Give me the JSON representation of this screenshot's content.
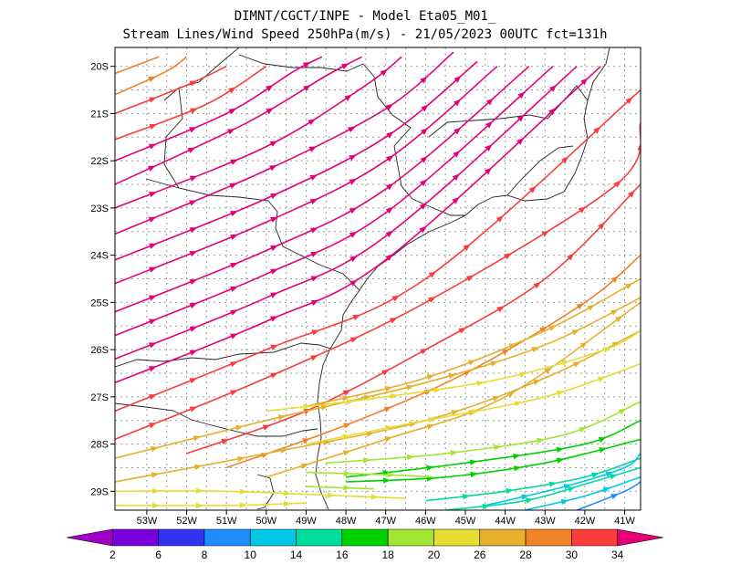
{
  "chart_data": {
    "type": "streamline",
    "title_line1": "DIMNT/CGCT/INPE -  Model Eta05_M01_",
    "title_line2": "Stream Lines/Wind Speed 250hPa(m/s) -  21/05/2023 00UTC fct=131h",
    "x_axis": {
      "range": [
        -53.8,
        -40.6
      ],
      "ticks": [
        -53,
        -52,
        -51,
        -50,
        -49,
        -48,
        -47,
        -46,
        -45,
        -44,
        -43,
        -42,
        -41
      ],
      "tick_labels": [
        "53W",
        "52W",
        "51W",
        "50W",
        "49W",
        "48W",
        "47W",
        "46W",
        "45W",
        "44W",
        "43W",
        "42W",
        "41W"
      ]
    },
    "y_axis": {
      "range": [
        -29.4,
        -19.6
      ],
      "ticks": [
        -20,
        -21,
        -22,
        -23,
        -24,
        -25,
        -26,
        -27,
        -28,
        -29
      ],
      "tick_labels": [
        "20S",
        "21S",
        "22S",
        "23S",
        "24S",
        "25S",
        "26S",
        "27S",
        "28S",
        "29S"
      ]
    },
    "grid": true,
    "colorbar": {
      "labels": [
        "2",
        "6",
        "8",
        "10",
        "14",
        "16",
        "18",
        "20",
        "26",
        "28",
        "30",
        "34"
      ],
      "colors": [
        "#a000c8",
        "#7800dc",
        "#3232f0",
        "#1e8cff",
        "#00c8e6",
        "#00dc9c",
        "#00d200",
        "#a0e632",
        "#e6dc32",
        "#e6af2d",
        "#f08228",
        "#fa3c3c",
        "#e60078"
      ]
    },
    "streamlines": [
      {
        "speed": 34,
        "points": [
          [
            -53.8,
            -23.55
          ],
          [
            -50,
            -22.2
          ],
          [
            -47,
            -20.9
          ],
          [
            -45.3,
            -19.7
          ]
        ]
      },
      {
        "speed": 34,
        "points": [
          [
            -53.8,
            -24.1
          ],
          [
            -50,
            -22.8
          ],
          [
            -47,
            -21.5
          ],
          [
            -44.7,
            -19.9
          ]
        ]
      },
      {
        "speed": 34,
        "points": [
          [
            -53.8,
            -24.6
          ],
          [
            -50,
            -23.3
          ],
          [
            -47,
            -22
          ],
          [
            -44.2,
            -20
          ]
        ]
      },
      {
        "speed": 34,
        "points": [
          [
            -53.8,
            -25.2
          ],
          [
            -50,
            -23.9
          ],
          [
            -47,
            -22.6
          ],
          [
            -43.4,
            -20
          ]
        ]
      },
      {
        "speed": 34,
        "points": [
          [
            -53.8,
            -25.7
          ],
          [
            -50,
            -24.4
          ],
          [
            -47,
            -23.1
          ],
          [
            -42.8,
            -20
          ]
        ]
      },
      {
        "speed": 34,
        "points": [
          [
            -53.8,
            -26.2
          ],
          [
            -50,
            -24.9
          ],
          [
            -47,
            -23.6
          ],
          [
            -42.2,
            -20
          ]
        ]
      },
      {
        "speed": 34,
        "points": [
          [
            -53.8,
            -26.7
          ],
          [
            -50,
            -25.4
          ],
          [
            -47,
            -24.1
          ],
          [
            -41.6,
            -20
          ]
        ]
      },
      {
        "speed": 34,
        "points": [
          [
            -53.8,
            -23
          ],
          [
            -50,
            -21.7
          ],
          [
            -47.5,
            -20.4
          ],
          [
            -46.6,
            -19.8
          ]
        ]
      },
      {
        "speed": 34,
        "points": [
          [
            -53.8,
            -22.5
          ],
          [
            -50.5,
            -21.2
          ],
          [
            -48.5,
            -20.2
          ],
          [
            -47.6,
            -19.8
          ]
        ]
      },
      {
        "speed": 34,
        "points": [
          [
            -53.8,
            -22
          ],
          [
            -51,
            -21
          ],
          [
            -49.3,
            -20.1
          ],
          [
            -48.6,
            -19.8
          ]
        ]
      },
      {
        "speed": 30,
        "points": [
          [
            -53.8,
            -21.55
          ],
          [
            -51.5,
            -20.8
          ],
          [
            -50,
            -20
          ]
        ]
      },
      {
        "speed": 30,
        "points": [
          [
            -53.8,
            -21
          ],
          [
            -52,
            -20.4
          ],
          [
            -51,
            -20
          ]
        ]
      },
      {
        "speed": 28,
        "points": [
          [
            -53.8,
            -20.6
          ],
          [
            -52.5,
            -20.1
          ],
          [
            -52,
            -19.8
          ]
        ]
      },
      {
        "speed": 28,
        "points": [
          [
            -53.8,
            -20.15
          ],
          [
            -52.7,
            -19.8
          ]
        ]
      },
      {
        "speed": 30,
        "points": [
          [
            -53.8,
            -27.3
          ],
          [
            -50,
            -26
          ],
          [
            -46,
            -24.5
          ],
          [
            -40.6,
            -20.5
          ]
        ]
      },
      {
        "speed": 30,
        "points": [
          [
            -53.8,
            -27.9
          ],
          [
            -50,
            -26.6
          ],
          [
            -46,
            -25
          ],
          [
            -41.2,
            -22.5
          ],
          [
            -40.6,
            -21.2
          ]
        ]
      },
      {
        "speed": 30,
        "points": [
          [
            -52,
            -28.2
          ],
          [
            -49,
            -27.3
          ],
          [
            -46,
            -26
          ],
          [
            -43,
            -24.5
          ],
          [
            -40.6,
            -22.5
          ]
        ]
      },
      {
        "speed": 28,
        "points": [
          [
            -51,
            -28.5
          ],
          [
            -48,
            -27.6
          ],
          [
            -45,
            -26.5
          ],
          [
            -42,
            -25
          ],
          [
            -40.6,
            -24
          ]
        ]
      },
      {
        "speed": 26,
        "points": [
          [
            -50,
            -28.7
          ],
          [
            -47,
            -27.9
          ],
          [
            -44,
            -27
          ],
          [
            -40.6,
            -25
          ]
        ]
      },
      {
        "speed": 26,
        "points": [
          [
            -49,
            -27.2
          ],
          [
            -46,
            -26.6
          ],
          [
            -43,
            -25.6
          ],
          [
            -40.6,
            -24.5
          ]
        ]
      },
      {
        "speed": 26,
        "points": [
          [
            -53.8,
            -28.3
          ],
          [
            -50,
            -27.5
          ],
          [
            -46,
            -26.7
          ],
          [
            -43,
            -25.9
          ],
          [
            -40.6,
            -24.9
          ]
        ]
      },
      {
        "speed": 26,
        "points": [
          [
            -53.8,
            -28.8
          ],
          [
            -50,
            -28.2
          ],
          [
            -46,
            -27.5
          ],
          [
            -43,
            -26.6
          ],
          [
            -40.6,
            -25.6
          ]
        ]
      },
      {
        "speed": 20,
        "points": [
          [
            -50,
            -27.3
          ],
          [
            -47,
            -27
          ],
          [
            -44,
            -26.6
          ],
          [
            -41.5,
            -26
          ],
          [
            -40.6,
            -25.6
          ]
        ]
      },
      {
        "speed": 20,
        "points": [
          [
            -49,
            -28
          ],
          [
            -46,
            -27.5
          ],
          [
            -43,
            -27
          ],
          [
            -40.6,
            -26.3
          ]
        ]
      },
      {
        "speed": 18,
        "points": [
          [
            -48.5,
            -28.4
          ],
          [
            -45.5,
            -28.2
          ],
          [
            -42.5,
            -27.8
          ],
          [
            -40.6,
            -27.1
          ]
        ]
      },
      {
        "speed": 16,
        "points": [
          [
            -48,
            -28.7
          ],
          [
            -45,
            -28.4
          ],
          [
            -42,
            -28
          ],
          [
            -40.6,
            -27.5
          ]
        ]
      },
      {
        "speed": 16,
        "points": [
          [
            -48,
            -28.8
          ],
          [
            -45.5,
            -28.7
          ],
          [
            -43,
            -28.4
          ],
          [
            -40.6,
            -27.9
          ]
        ]
      },
      {
        "speed": 14,
        "points": [
          [
            -46,
            -29.2
          ],
          [
            -44,
            -29
          ],
          [
            -42,
            -28.7
          ],
          [
            -40.6,
            -28.3
          ]
        ]
      },
      {
        "speed": 14,
        "points": [
          [
            -45.5,
            -29.4
          ],
          [
            -43.5,
            -29.2
          ],
          [
            -41.8,
            -28.8
          ],
          [
            -40.6,
            -28.5
          ]
        ]
      },
      {
        "speed": 10,
        "points": [
          [
            -44.5,
            -29.3
          ],
          [
            -42.5,
            -28.9
          ],
          [
            -41,
            -28.5
          ],
          [
            -40.6,
            -28.2
          ]
        ]
      },
      {
        "speed": 10,
        "points": [
          [
            -43.5,
            -29.4
          ],
          [
            -42,
            -29.1
          ],
          [
            -40.6,
            -28.7
          ]
        ]
      },
      {
        "speed": 8,
        "points": [
          [
            -42.2,
            -29.4
          ],
          [
            -41,
            -29
          ],
          [
            -40.6,
            -28.8
          ]
        ]
      },
      {
        "speed": 22,
        "points": [
          [
            -53.8,
            -29.0
          ],
          [
            -51,
            -29.0
          ],
          [
            -48,
            -29.1
          ],
          [
            -46.5,
            -29.15
          ]
        ]
      },
      {
        "speed": 24,
        "points": [
          [
            -53.8,
            -29.3
          ],
          [
            -51,
            -29.3
          ],
          [
            -49,
            -29.25
          ]
        ]
      },
      {
        "speed": 18,
        "points": [
          [
            -49,
            -28.6
          ],
          [
            -47,
            -28.65
          ],
          [
            -45.8,
            -28.7
          ]
        ]
      },
      {
        "speed": 18,
        "points": [
          [
            -49,
            -28.9
          ],
          [
            -47.3,
            -28.95
          ]
        ]
      }
    ]
  }
}
